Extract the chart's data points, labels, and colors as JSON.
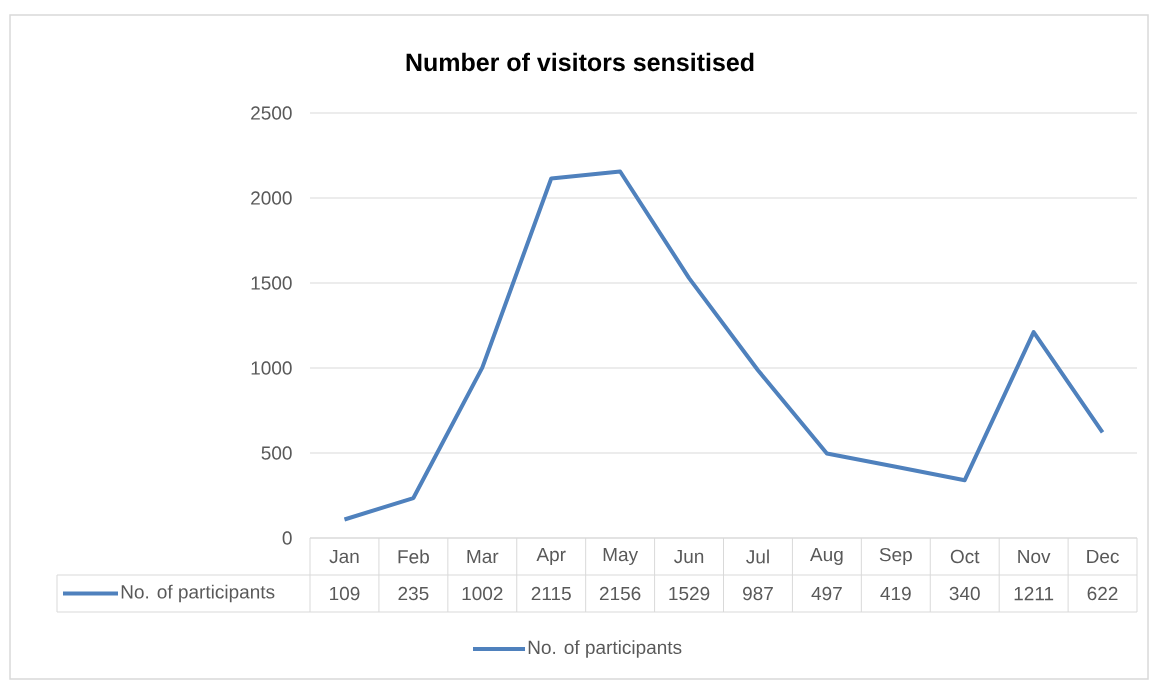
{
  "chart_data": {
    "type": "line",
    "title": "Number of visitors sensitised",
    "categories": [
      "Jan",
      "Feb",
      "Mar",
      "Apr",
      "May",
      "Jun",
      "Jul",
      "Aug",
      "Sep",
      "Oct",
      "Nov",
      "Dec"
    ],
    "series": [
      {
        "name": "No. of participants",
        "color": "#4f81bd",
        "values": [
          109,
          235,
          1002,
          2115,
          2156,
          1529,
          987,
          497,
          419,
          340,
          1211,
          622
        ]
      }
    ],
    "ylim": [
      0,
      2500
    ],
    "yticks": [
      0,
      500,
      1000,
      1500,
      2000,
      2500
    ],
    "grid": "y",
    "legend": "bottom",
    "data_labels": true,
    "marker": "none",
    "line_style": "solid"
  }
}
